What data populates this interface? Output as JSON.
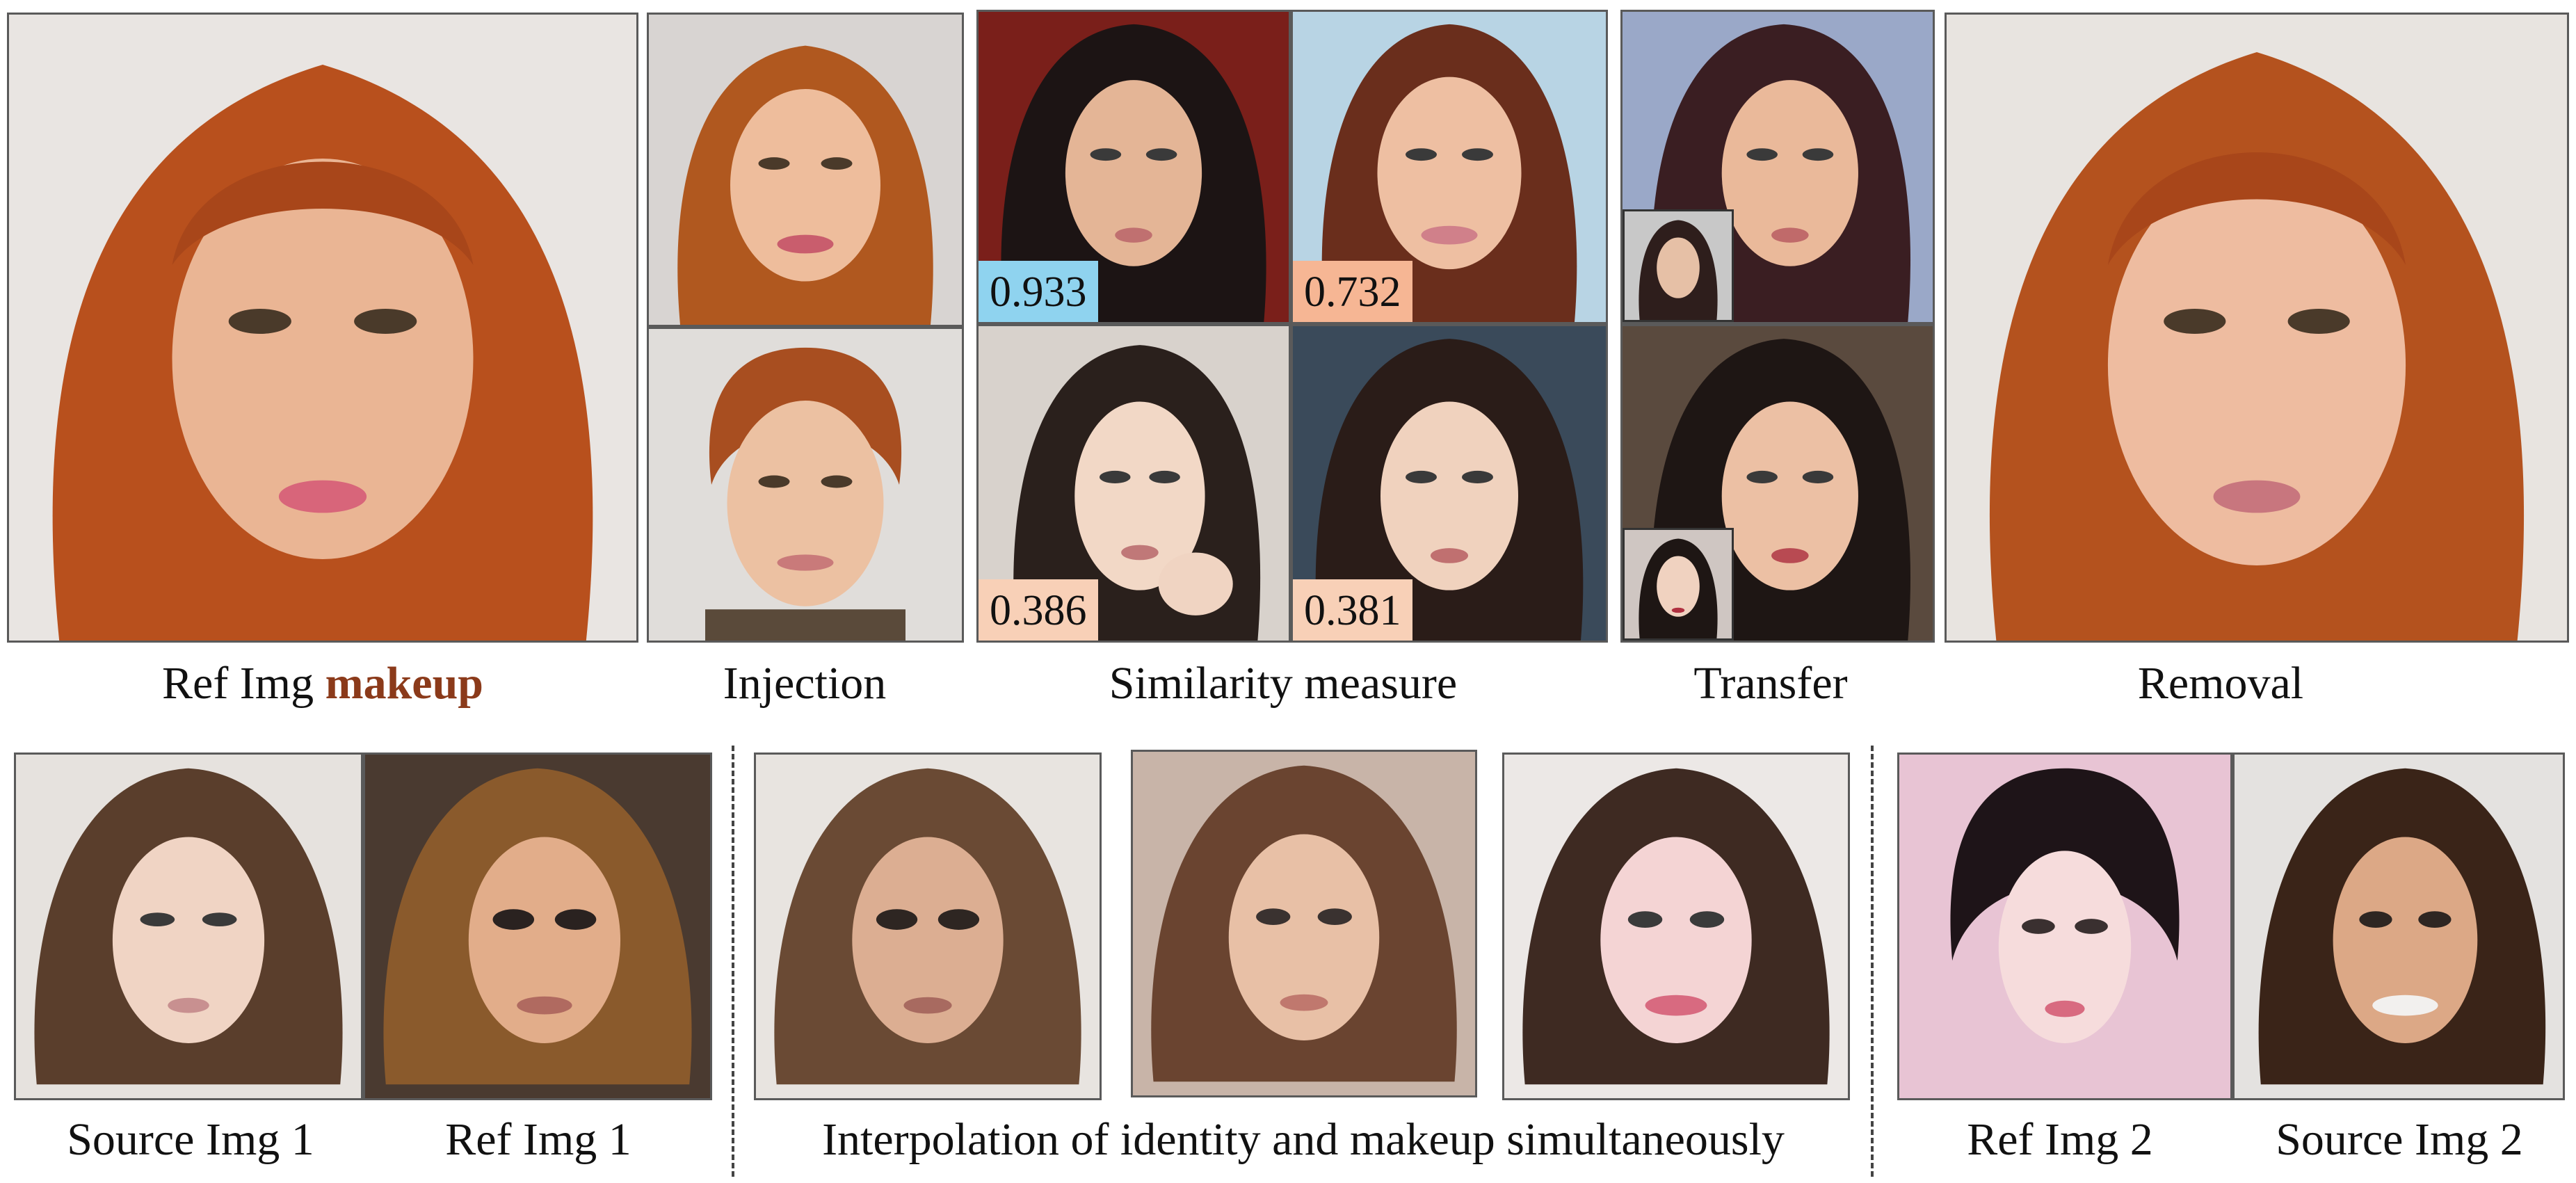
{
  "captions": {
    "ref_img": "Ref Img",
    "ref_img_highlight": "makeup",
    "injection": "Injection",
    "similarity": "Similarity measure",
    "transfer": "Transfer",
    "removal": "Removal",
    "source_img_1": "Source Img 1",
    "ref_img_1": "Ref Img 1",
    "interpolation": "Interpolation of identity and makeup simultaneously",
    "ref_img_2": "Ref Img 2",
    "source_img_2": "Source Img 2"
  },
  "scores": [
    "0.933",
    "0.732",
    "0.386",
    "0.381"
  ],
  "colors": {
    "badge_high": "#8fd3ef",
    "badge_mid": "#f6b694",
    "badge_low": "#f8d0b7",
    "highlight": "#8b3a1a"
  }
}
